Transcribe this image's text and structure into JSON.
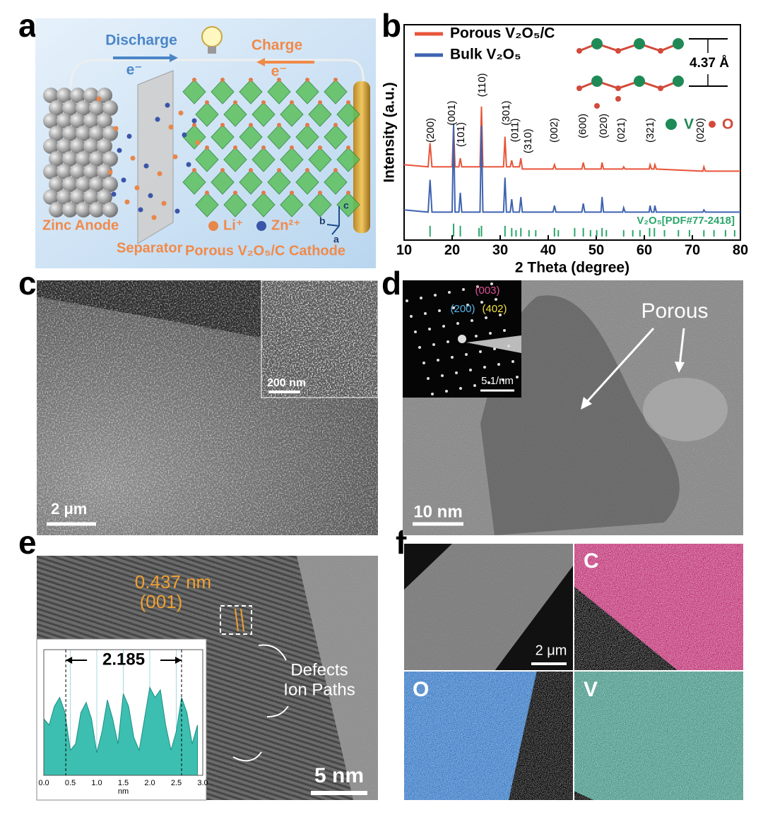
{
  "panel_labels": [
    "a",
    "b",
    "c",
    "d",
    "e",
    "f"
  ],
  "panel_a": {
    "discharge": "Discharge",
    "charge": "Charge",
    "electron_labels": [
      "e⁻",
      "e⁻"
    ],
    "zinc_anode": "Zinc Anode",
    "separator": "Separator",
    "cathode": "Porous V₂O₅/C Cathode",
    "li_ion": "Li⁺",
    "zn_ion": "Zn²⁺",
    "axes": [
      "c",
      "b",
      "a"
    ]
  },
  "chart_data": [
    {
      "type": "line",
      "xlabel": "2 Theta (degree)",
      "ylabel": "Intensity (a.u.)",
      "legend": "upper left",
      "xlim": [
        10,
        80
      ],
      "ylim": [
        0,
        100
      ],
      "xticks": [
        10,
        20,
        30,
        40,
        50,
        60,
        70,
        80
      ],
      "x": [
        10,
        15.0,
        15.4,
        15.8,
        20.0,
        20.3,
        20.6,
        21.4,
        21.7,
        22.0,
        25.8,
        26.1,
        26.4,
        30.7,
        31.0,
        31.3,
        32.1,
        32.4,
        32.7,
        34.0,
        34.3,
        34.6,
        41.0,
        41.3,
        41.6,
        47.0,
        47.3,
        47.6,
        51.0,
        51.2,
        51.5,
        55.5,
        55.7,
        56.0,
        61.0,
        61.2,
        61.5,
        62.0,
        62.2,
        62.5,
        72.2,
        72.4,
        72.7,
        80
      ],
      "series": [
        {
          "name": "Porous V₂O₅/C",
          "color": "#e8553a",
          "values": [
            35,
            34,
            45,
            34,
            34,
            53,
            34,
            34,
            38,
            34,
            34,
            62,
            34,
            34,
            48,
            34,
            34,
            37,
            34,
            34,
            38,
            33,
            33,
            35,
            33,
            33,
            36,
            33,
            33,
            36,
            33,
            33,
            34,
            33,
            33,
            35,
            33,
            33,
            35,
            33,
            32,
            34,
            32,
            32
          ]
        },
        {
          "name": "Bulk V₂O₅",
          "color": "#3f63b0",
          "values": [
            14,
            13,
            28,
            13,
            13,
            54,
            13,
            13,
            22,
            13,
            13,
            53,
            13,
            13,
            29,
            13,
            13,
            19,
            13,
            13,
            20,
            13,
            13,
            16,
            13,
            13,
            17,
            13,
            13,
            20,
            13,
            13,
            15,
            13,
            13,
            16,
            13,
            13,
            16,
            13,
            13,
            14,
            13,
            13
          ]
        }
      ],
      "reference": {
        "name": "V₂O₅[PDF#77-2418]",
        "color": "#2aa66a",
        "x": [
          15.4,
          20.3,
          21.7,
          25.6,
          26.1,
          31.0,
          32.4,
          33.3,
          34.3,
          36.0,
          37.4,
          41.3,
          42.1,
          45.5,
          47.3,
          48.8,
          50.1,
          51.2,
          52.1,
          55.7,
          57.6,
          59.1,
          61.1,
          62.1,
          64.2,
          67.1,
          69.4,
          72.4,
          74.5,
          76.9,
          78.8
        ],
        "values": [
          5,
          6,
          5,
          4,
          5,
          5,
          4,
          3,
          4,
          3,
          3,
          4,
          3,
          4,
          4,
          3,
          3,
          4,
          3,
          3,
          3,
          3,
          4,
          4,
          3,
          3,
          3,
          3,
          3,
          3,
          3
        ]
      },
      "peak_labels": [
        {
          "text": "(200)",
          "x": 15.6,
          "y": 51
        },
        {
          "text": "(001)",
          "x": 20.0,
          "y": 59
        },
        {
          "text": "(101)",
          "x": 21.9,
          "y": 49
        },
        {
          "text": "(110)",
          "x": 26.3,
          "y": 72
        },
        {
          "text": "(301)",
          "x": 31.3,
          "y": 59
        },
        {
          "text": "(011)",
          "x": 33.2,
          "y": 51
        },
        {
          "text": "(310)",
          "x": 35.9,
          "y": 46
        },
        {
          "text": "(002)",
          "x": 41.3,
          "y": 51
        },
        {
          "text": "(600)",
          "x": 47.3,
          "y": 53
        },
        {
          "text": "(020)",
          "x": 51.6,
          "y": 53
        },
        {
          "text": "(021)",
          "x": 55.3,
          "y": 51
        },
        {
          "text": "(321)",
          "x": 61.3,
          "y": 51
        },
        {
          "text": "(020)",
          "x": 71.8,
          "y": 51
        }
      ],
      "inset": {
        "spacing": "4.37 Å",
        "legend": [
          "V",
          "O"
        ]
      }
    },
    {
      "type": "area",
      "xlabel": "nm",
      "color": "#3cbfb0",
      "xlim": [
        0,
        3
      ],
      "ylim": [
        0,
        100
      ],
      "xticks": [
        {
          "value": 0,
          "label": "0.0"
        },
        0.5,
        {
          "value": 1,
          "label": "1.0"
        },
        1.5,
        {
          "value": 2,
          "label": "2.0"
        },
        2.5,
        {
          "value": 3,
          "label": "3.0"
        }
      ],
      "x": [
        0.0,
        0.1,
        0.2,
        0.3,
        0.4,
        0.5,
        0.6,
        0.7,
        0.8,
        0.9,
        1.0,
        1.1,
        1.2,
        1.3,
        1.4,
        1.5,
        1.6,
        1.7,
        1.8,
        1.9,
        2.0,
        2.1,
        2.2,
        2.3,
        2.4,
        2.5,
        2.6,
        2.7,
        2.8,
        2.9
      ],
      "values": [
        45,
        40,
        55,
        62,
        50,
        20,
        25,
        50,
        58,
        45,
        18,
        35,
        60,
        45,
        25,
        65,
        55,
        30,
        20,
        45,
        70,
        62,
        68,
        40,
        20,
        35,
        62,
        50,
        25,
        40
      ],
      "span": {
        "label": "2.185",
        "x": [
          0.415,
          2.6
        ]
      }
    }
  ],
  "panel_c": {
    "inset_scale": "200 nm",
    "scale": "2 μm"
  },
  "panel_d": {
    "spots": [
      "(003)",
      "(200)",
      "(402)"
    ],
    "inset_scale": "5 1/nm",
    "porous": "Porous",
    "scale": "10 nm"
  },
  "panel_e": {
    "spacing": "0.437 nm",
    "plane": "(001)",
    "defects": "Defects",
    "ion_paths": "Ion Paths",
    "scale": "5 nm"
  },
  "panel_f": {
    "scale": "2 μm",
    "elements": [
      "C",
      "O",
      "V"
    ]
  }
}
